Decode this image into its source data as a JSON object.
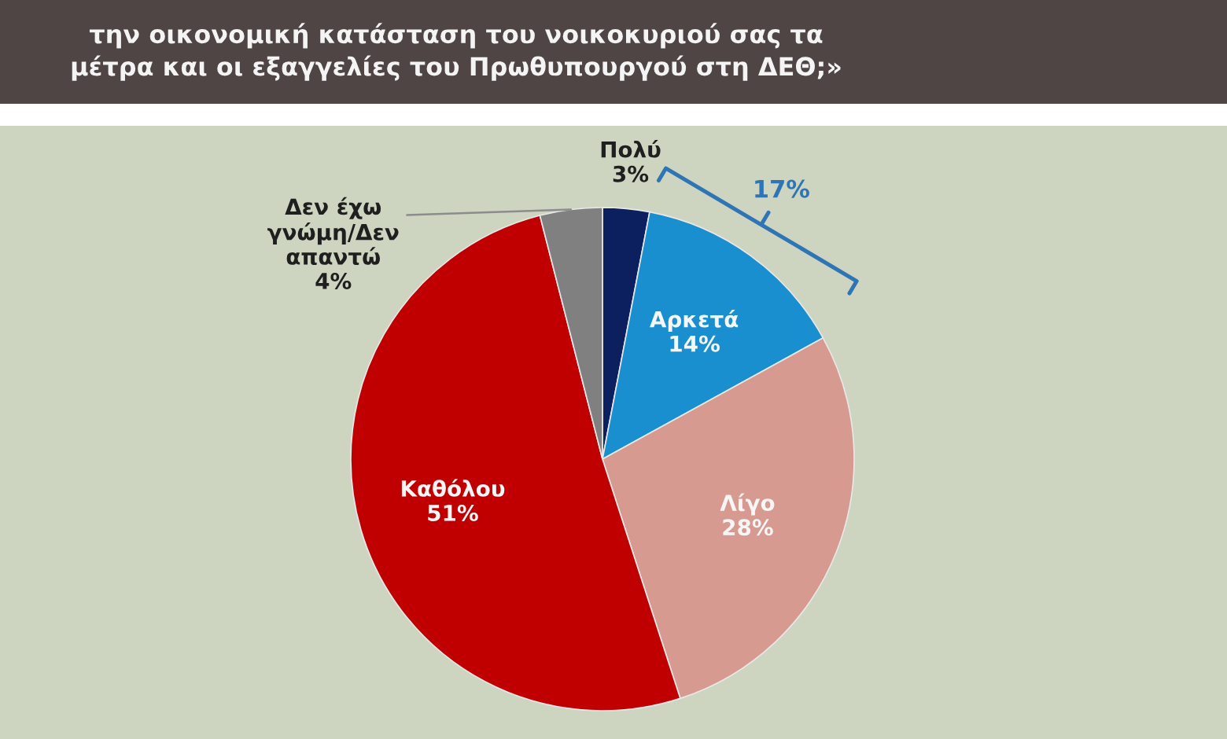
{
  "chart_data": {
    "type": "pie",
    "title": "την οικονομική κατάσταση του νοικοκυριού σας τα\nμέτρα και οι εξαγγελίες του Πρωθυπουργού στη ΔΕΘ;»",
    "categories": [
      "Πολύ",
      "Αρκετά",
      "Λίγο",
      "Καθόλου",
      "Δεν έχω\nγνώμη/Δεν\nαπαντώ"
    ],
    "values": [
      3,
      14,
      28,
      51,
      4
    ],
    "value_labels": [
      "3%",
      "14%",
      "28%",
      "51%",
      "4%"
    ],
    "colors": [
      "#0c1f5e",
      "#1a8fd0",
      "#d79a90",
      "#c00000",
      "#808080"
    ],
    "annotations": [
      "17%"
    ]
  }
}
